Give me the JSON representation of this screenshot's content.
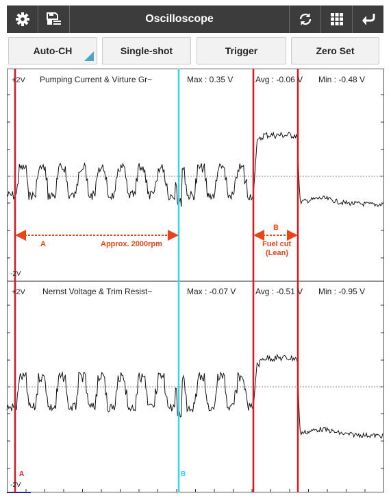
{
  "app": {
    "title": "Oscilloscope",
    "icons": {
      "settings": "gear-icon",
      "save": "save-list-icon",
      "refresh": "refresh-icon",
      "grid": "grid-icon",
      "back": "back-arrow-icon"
    }
  },
  "toolbar": {
    "auto_ch": "Auto-CH",
    "single_shot": "Single-shot",
    "trigger": "Trigger",
    "zero_set": "Zero Set"
  },
  "channels": [
    {
      "name": "Pumping Current & Virture Gr~",
      "max": "Max : 0.35 V",
      "avg": "Avg : -0.06 V",
      "min": "Min : -0.48 V",
      "scale_top": "+2V",
      "scale_bottom": "-2V"
    },
    {
      "name": "Nernst Voltage & Trim Resist~",
      "max": "Max : -0.07 V",
      "avg": "Avg : -0.51 V",
      "min": "Min : -0.95 V",
      "scale_top": "+2V",
      "scale_bottom": "-2V"
    }
  ],
  "annotations": {
    "a_label": "A",
    "a_text": "Approx. 2000rpm",
    "b_label": "B",
    "b_text_1": "Fuel cut",
    "b_text_2": "(Lean)",
    "cursor_a": "A",
    "cursor_b": "B"
  },
  "colors": {
    "topbar": "#3c3c3c",
    "cursor_red": "#e0161e",
    "cursor_cyan": "#33d6e8",
    "annotation": "#e8451a",
    "trace": "#111111",
    "accent": "#4aa6c9"
  }
}
